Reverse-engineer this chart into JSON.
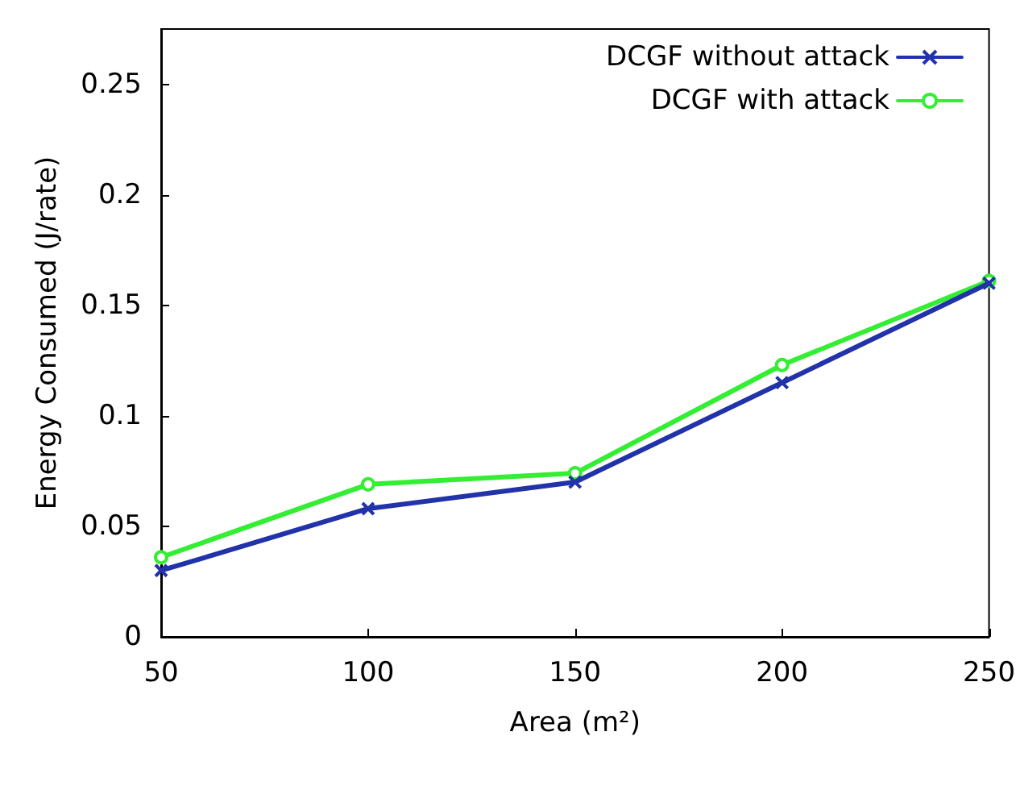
{
  "chart_data": {
    "type": "line",
    "xlabel": "Area (m²)",
    "ylabel": "Energy Consumed (J/rate)",
    "x": [
      50,
      100,
      150,
      200,
      250
    ],
    "series": [
      {
        "name": "DCGF without attack",
        "color": "#2233aa",
        "marker": "cross",
        "values": [
          0.03,
          0.058,
          0.07,
          0.115,
          0.16
        ]
      },
      {
        "name": "DCGF with attack",
        "color": "#33ee33",
        "marker": "circle",
        "values": [
          0.036,
          0.069,
          0.074,
          0.123,
          0.161
        ]
      }
    ],
    "xlim": [
      50,
      250
    ],
    "xticks": [
      50,
      100,
      150,
      200,
      250
    ],
    "ylim": [
      0,
      0.275
    ],
    "yticks": [
      0,
      0.05,
      0.1,
      0.15,
      0.2,
      0.25
    ],
    "grid": false,
    "legend": "top right",
    "line_style": "solid"
  }
}
